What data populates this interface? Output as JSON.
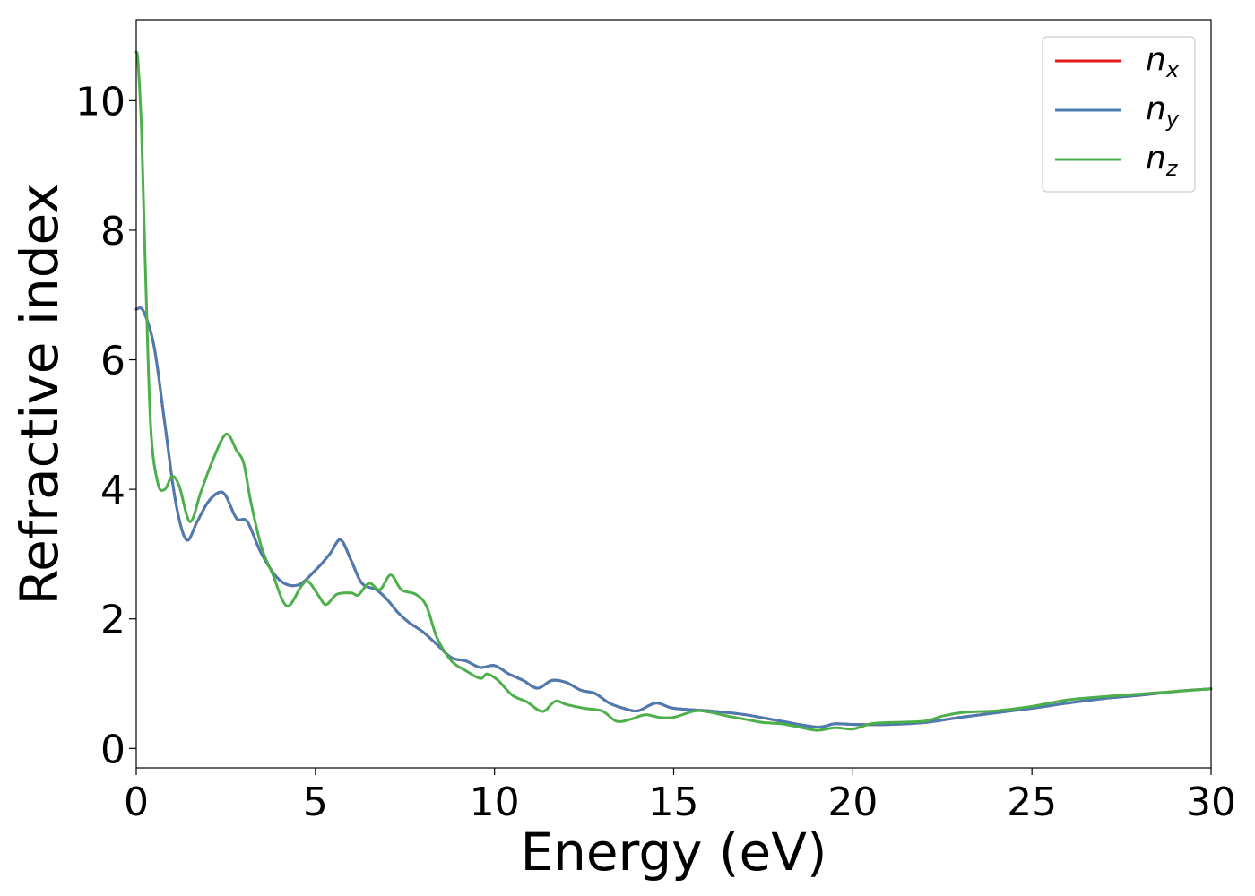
{
  "chart_data": {
    "type": "line",
    "title": "",
    "xlabel": "Energy (eV)",
    "ylabel": "Refractive index",
    "xlim": [
      0,
      30
    ],
    "ylim": [
      -0.3,
      11.25
    ],
    "xticks": [
      0,
      5,
      10,
      15,
      20,
      25,
      30
    ],
    "yticks": [
      0,
      2,
      4,
      6,
      8,
      10
    ],
    "grid": false,
    "legend_position": "top-right",
    "series": [
      {
        "name": "n",
        "subscript": "x",
        "color": "#e41a1c",
        "x": [
          0,
          0.2,
          0.5,
          0.8,
          1.1,
          1.4,
          1.7,
          2.0,
          2.3,
          2.5,
          2.8,
          3.1,
          3.5,
          4.0,
          4.5,
          5.0,
          5.4,
          5.7,
          6.0,
          6.3,
          6.7,
          7.0,
          7.3,
          7.6,
          8.0,
          8.4,
          8.8,
          9.2,
          9.6,
          10.0,
          10.4,
          10.8,
          11.2,
          11.6,
          12.0,
          12.4,
          12.8,
          13.2,
          13.6,
          14.0,
          14.5,
          15.0,
          16.0,
          17.0,
          18.0,
          19.0,
          19.5,
          20.0,
          21.0,
          22.0,
          23.0,
          24.0,
          25.0,
          26.0,
          27.0,
          28.0,
          29.0,
          30.0
        ],
        "y": [
          6.78,
          6.75,
          6.2,
          5.0,
          3.8,
          3.22,
          3.5,
          3.8,
          3.95,
          3.9,
          3.55,
          3.5,
          3.0,
          2.6,
          2.52,
          2.75,
          3.0,
          3.22,
          2.9,
          2.55,
          2.45,
          2.3,
          2.1,
          1.95,
          1.8,
          1.6,
          1.4,
          1.35,
          1.25,
          1.28,
          1.15,
          1.05,
          0.93,
          1.05,
          1.02,
          0.9,
          0.85,
          0.7,
          0.62,
          0.58,
          0.7,
          0.62,
          0.58,
          0.52,
          0.42,
          0.33,
          0.38,
          0.37,
          0.37,
          0.4,
          0.48,
          0.55,
          0.62,
          0.7,
          0.77,
          0.82,
          0.88,
          0.92
        ]
      },
      {
        "name": "n",
        "subscript": "y",
        "color": "#4a7bb1",
        "x": [
          0,
          0.2,
          0.5,
          0.8,
          1.1,
          1.4,
          1.7,
          2.0,
          2.3,
          2.5,
          2.8,
          3.1,
          3.5,
          4.0,
          4.5,
          5.0,
          5.4,
          5.7,
          6.0,
          6.3,
          6.7,
          7.0,
          7.3,
          7.6,
          8.0,
          8.4,
          8.8,
          9.2,
          9.6,
          10.0,
          10.4,
          10.8,
          11.2,
          11.6,
          12.0,
          12.4,
          12.8,
          13.2,
          13.6,
          14.0,
          14.5,
          15.0,
          16.0,
          17.0,
          18.0,
          19.0,
          19.5,
          20.0,
          21.0,
          22.0,
          23.0,
          24.0,
          25.0,
          26.0,
          27.0,
          28.0,
          29.0,
          30.0
        ],
        "y": [
          6.78,
          6.75,
          6.2,
          5.0,
          3.8,
          3.22,
          3.5,
          3.8,
          3.95,
          3.9,
          3.55,
          3.5,
          3.0,
          2.6,
          2.52,
          2.75,
          3.0,
          3.22,
          2.9,
          2.55,
          2.45,
          2.3,
          2.1,
          1.95,
          1.8,
          1.6,
          1.4,
          1.35,
          1.25,
          1.28,
          1.15,
          1.05,
          0.93,
          1.05,
          1.02,
          0.9,
          0.85,
          0.7,
          0.62,
          0.58,
          0.7,
          0.62,
          0.58,
          0.52,
          0.42,
          0.33,
          0.38,
          0.37,
          0.37,
          0.4,
          0.48,
          0.55,
          0.62,
          0.7,
          0.77,
          0.82,
          0.88,
          0.92
        ]
      },
      {
        "name": "n",
        "subscript": "z",
        "color": "#4daf4a",
        "x": [
          0,
          0.05,
          0.15,
          0.25,
          0.4,
          0.6,
          0.8,
          1.0,
          1.2,
          1.5,
          1.8,
          2.1,
          2.5,
          2.8,
          3.0,
          3.2,
          3.5,
          3.8,
          4.2,
          4.6,
          4.8,
          5.1,
          5.3,
          5.6,
          6.0,
          6.2,
          6.5,
          6.8,
          7.1,
          7.4,
          7.8,
          8.1,
          8.4,
          8.8,
          9.2,
          9.6,
          9.8,
          10.1,
          10.5,
          10.9,
          11.2,
          11.4,
          11.7,
          12.0,
          12.5,
          13.0,
          13.4,
          13.8,
          14.2,
          14.6,
          15.0,
          15.6,
          16.0,
          16.5,
          17.0,
          17.5,
          18.0,
          18.5,
          19.0,
          19.5,
          20.0,
          20.5,
          21.0,
          22.0,
          22.5,
          23.0,
          23.5,
          24.0,
          25.0,
          26.0,
          27.0,
          28.0,
          29.0,
          30.0
        ],
        "y": [
          10.75,
          10.6,
          9.5,
          7.5,
          5.0,
          4.1,
          4.0,
          4.2,
          4.05,
          3.5,
          3.95,
          4.4,
          4.85,
          4.6,
          4.4,
          3.8,
          3.1,
          2.7,
          2.2,
          2.5,
          2.58,
          2.35,
          2.22,
          2.38,
          2.4,
          2.37,
          2.55,
          2.45,
          2.68,
          2.45,
          2.38,
          2.2,
          1.7,
          1.35,
          1.2,
          1.08,
          1.15,
          1.05,
          0.82,
          0.72,
          0.6,
          0.58,
          0.73,
          0.68,
          0.62,
          0.58,
          0.42,
          0.45,
          0.52,
          0.48,
          0.48,
          0.58,
          0.56,
          0.5,
          0.45,
          0.4,
          0.38,
          0.33,
          0.28,
          0.32,
          0.3,
          0.38,
          0.4,
          0.42,
          0.5,
          0.55,
          0.57,
          0.58,
          0.65,
          0.75,
          0.8,
          0.84,
          0.88,
          0.92
        ]
      }
    ]
  }
}
